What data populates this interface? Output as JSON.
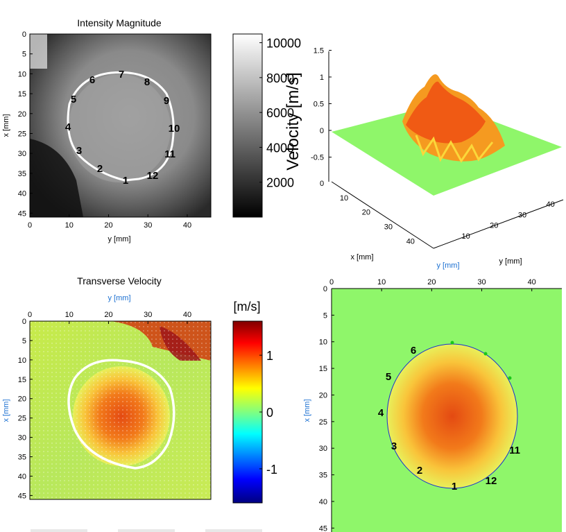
{
  "panels": {
    "intensity": {
      "title": "Intensity Magnitude",
      "xlabel": "y [mm]",
      "ylabel": "x [mm]",
      "xticks": [
        "0",
        "10",
        "20",
        "30",
        "40"
      ],
      "yticks": [
        "0",
        "5",
        "10",
        "15",
        "20",
        "25",
        "30",
        "35",
        "40",
        "45"
      ],
      "segments": [
        "1",
        "2",
        "3",
        "4",
        "5",
        "6",
        "7",
        "8",
        "9",
        "10",
        "11",
        "12"
      ]
    },
    "intensity_colorbar": {
      "ticks": [
        "10000",
        "8000",
        "6000",
        "4000",
        "2000"
      ],
      "label": "Velocity [m/s]"
    },
    "surface3d": {
      "zticks": [
        "1.5",
        "1",
        "0.5",
        "0",
        "-0.5"
      ],
      "xlabel": "x [mm]",
      "ylabel": "y [mm]",
      "y_label_blue": "y [mm]",
      "xticks": [
        "0",
        "10",
        "20",
        "30",
        "40"
      ],
      "yticks": [
        "10",
        "20",
        "30",
        "40"
      ]
    },
    "transverse": {
      "title": "Transverse Velocity",
      "xlabel": "y [mm]",
      "ylabel": "x [mm]",
      "xticks": [
        "0",
        "10",
        "20",
        "30",
        "40"
      ],
      "yticks": [
        "0",
        "5",
        "10",
        "15",
        "20",
        "25",
        "30",
        "35",
        "40",
        "45"
      ]
    },
    "velocity_colorbar": {
      "unit": "[m/s]",
      "ticks": [
        "1",
        "0",
        "-1"
      ]
    },
    "segmented": {
      "xticks": [
        "0",
        "10",
        "20",
        "30",
        "40"
      ],
      "yticks": [
        "0",
        "5",
        "10",
        "15",
        "20",
        "25",
        "30",
        "35",
        "40",
        "45"
      ],
      "ylabel": "x [mm]",
      "segments": [
        "1",
        "2",
        "3",
        "4",
        "5",
        "6",
        "11",
        "12"
      ]
    }
  },
  "chart_data": [
    {
      "type": "heatmap",
      "title": "Intensity Magnitude",
      "xlabel": "y [mm]",
      "ylabel": "x [mm]",
      "xlim": [
        0,
        46
      ],
      "ylim": [
        0,
        46
      ],
      "colorbar_range": [
        0,
        10500
      ],
      "colormap": "gray",
      "contour_segments": [
        "1",
        "2",
        "3",
        "4",
        "5",
        "6",
        "7",
        "8",
        "9",
        "10",
        "11",
        "12"
      ]
    },
    {
      "type": "area",
      "title": "",
      "zlim": [
        -0.5,
        1.5
      ],
      "xlabel": "x [mm]",
      "ylabel": "y [mm]",
      "peak_value": 1.25
    },
    {
      "type": "heatmap",
      "title": "Transverse Velocity",
      "xlabel": "y [mm]",
      "ylabel": "x [mm]",
      "xlim": [
        0,
        46
      ],
      "ylim": [
        0,
        46
      ],
      "colorbar_label": "[m/s]",
      "colorbar_range": [
        -1.6,
        1.6
      ],
      "colormap": "jet"
    },
    {
      "type": "heatmap",
      "xlim": [
        0,
        46
      ],
      "ylim": [
        0,
        46
      ],
      "colormap": "jet",
      "contour_segments": [
        "1",
        "2",
        "3",
        "4",
        "5",
        "6",
        "11",
        "12"
      ]
    }
  ],
  "colors": {
    "background_green": "#8ff66a",
    "contour_white": "#ffffff",
    "blue_label": "#1a6fd1"
  }
}
